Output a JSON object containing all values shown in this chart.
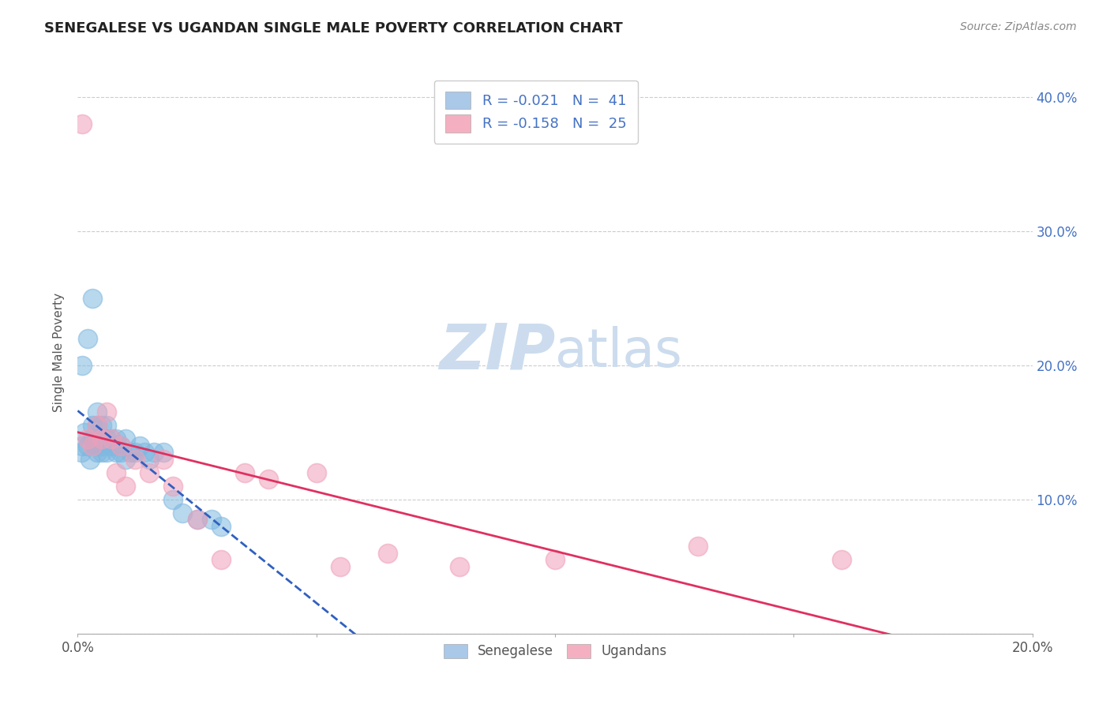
{
  "title": "SENEGALESE VS UGANDAN SINGLE MALE POVERTY CORRELATION CHART",
  "source": "Source: ZipAtlas.com",
  "ylabel": "Single Male Poverty",
  "xlim": [
    0.0,
    0.2
  ],
  "ylim": [
    0.0,
    0.42
  ],
  "xticks": [
    0.0,
    0.05,
    0.1,
    0.15,
    0.2
  ],
  "xtick_labels": [
    "0.0%",
    "",
    "",
    "",
    "20.0%"
  ],
  "yticks": [
    0.0,
    0.1,
    0.2,
    0.3,
    0.4
  ],
  "ytick_labels_right": [
    "",
    "10.0%",
    "20.0%",
    "30.0%",
    "40.0%"
  ],
  "blue_scatter_color": "#7fb8e0",
  "pink_scatter_color": "#f0a0b8",
  "blue_line_color": "#3060c0",
  "pink_line_color": "#e03060",
  "blue_legend_color": "#aac8e8",
  "pink_legend_color": "#f4b0c0",
  "watermark_zip": "ZIP",
  "watermark_atlas": "atlas",
  "watermark_color": "#ccdcee",
  "senegalese_x": [
    0.0008,
    0.001,
    0.001,
    0.0015,
    0.002,
    0.002,
    0.0025,
    0.003,
    0.003,
    0.003,
    0.0035,
    0.004,
    0.004,
    0.004,
    0.004,
    0.005,
    0.005,
    0.005,
    0.006,
    0.006,
    0.006,
    0.007,
    0.007,
    0.008,
    0.008,
    0.009,
    0.009,
    0.01,
    0.01,
    0.011,
    0.012,
    0.013,
    0.014,
    0.015,
    0.016,
    0.018,
    0.02,
    0.022,
    0.025,
    0.028,
    0.03
  ],
  "senegalese_y": [
    0.135,
    0.14,
    0.2,
    0.15,
    0.14,
    0.22,
    0.13,
    0.145,
    0.155,
    0.25,
    0.14,
    0.135,
    0.145,
    0.155,
    0.165,
    0.135,
    0.14,
    0.155,
    0.135,
    0.145,
    0.155,
    0.14,
    0.145,
    0.135,
    0.145,
    0.135,
    0.14,
    0.13,
    0.145,
    0.135,
    0.135,
    0.14,
    0.135,
    0.13,
    0.135,
    0.135,
    0.1,
    0.09,
    0.085,
    0.085,
    0.08
  ],
  "ugandans_x": [
    0.001,
    0.002,
    0.003,
    0.004,
    0.005,
    0.006,
    0.007,
    0.008,
    0.009,
    0.01,
    0.012,
    0.015,
    0.018,
    0.02,
    0.025,
    0.03,
    0.035,
    0.04,
    0.05,
    0.055,
    0.065,
    0.08,
    0.1,
    0.13,
    0.16
  ],
  "ugandans_y": [
    0.38,
    0.145,
    0.14,
    0.155,
    0.145,
    0.165,
    0.145,
    0.12,
    0.14,
    0.11,
    0.13,
    0.12,
    0.13,
    0.11,
    0.085,
    0.055,
    0.12,
    0.115,
    0.12,
    0.05,
    0.06,
    0.05,
    0.055,
    0.065,
    0.055
  ]
}
